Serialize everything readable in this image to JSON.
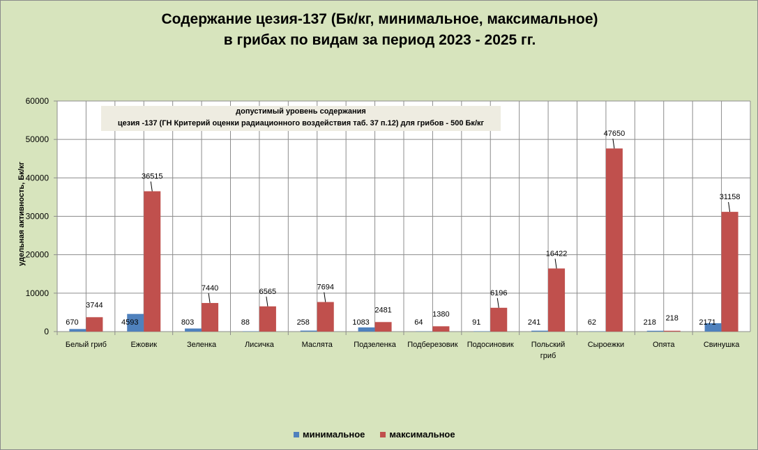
{
  "chart_data": {
    "type": "bar",
    "title_line1": "Содержание цезия-137 (Бк/кг, минимальное, максимальное)",
    "title_line2": "в грибах по видам  за период 2023 - 2025 гг.",
    "ylabel": "удельная активность,  Бк/кг",
    "ylim": [
      0,
      60000
    ],
    "yticks": [
      "0",
      "10000",
      "20000",
      "30000",
      "40000",
      "50000",
      "60000"
    ],
    "categories": [
      "Белый гриб",
      "Ежовик",
      "Зеленка",
      "Лисичка",
      "Маслята",
      "Подзеленка",
      "Подберезовик",
      "Подосиновик",
      "Польский гриб",
      "Сыроежки",
      "Опята",
      "Свинушка"
    ],
    "series": [
      {
        "name": "минимальное",
        "color": "#4f81bd",
        "values": [
          670,
          4593,
          803,
          88,
          258,
          1083,
          64,
          91,
          241,
          62,
          218,
          2171
        ]
      },
      {
        "name": "максимальное",
        "color": "#c0504d",
        "values": [
          3744,
          36515,
          7440,
          6565,
          7694,
          2481,
          1380,
          6196,
          16422,
          47650,
          218,
          31158
        ]
      }
    ],
    "annotation_line1": "допустимый  уровень содержания",
    "annotation_line2": "цезия -137  (ГН Критерий  оценки радиационного  воздействия таб. 37 п.12)  для грибов - 500 Бк/кг",
    "grid": true,
    "legend": "bottom"
  }
}
